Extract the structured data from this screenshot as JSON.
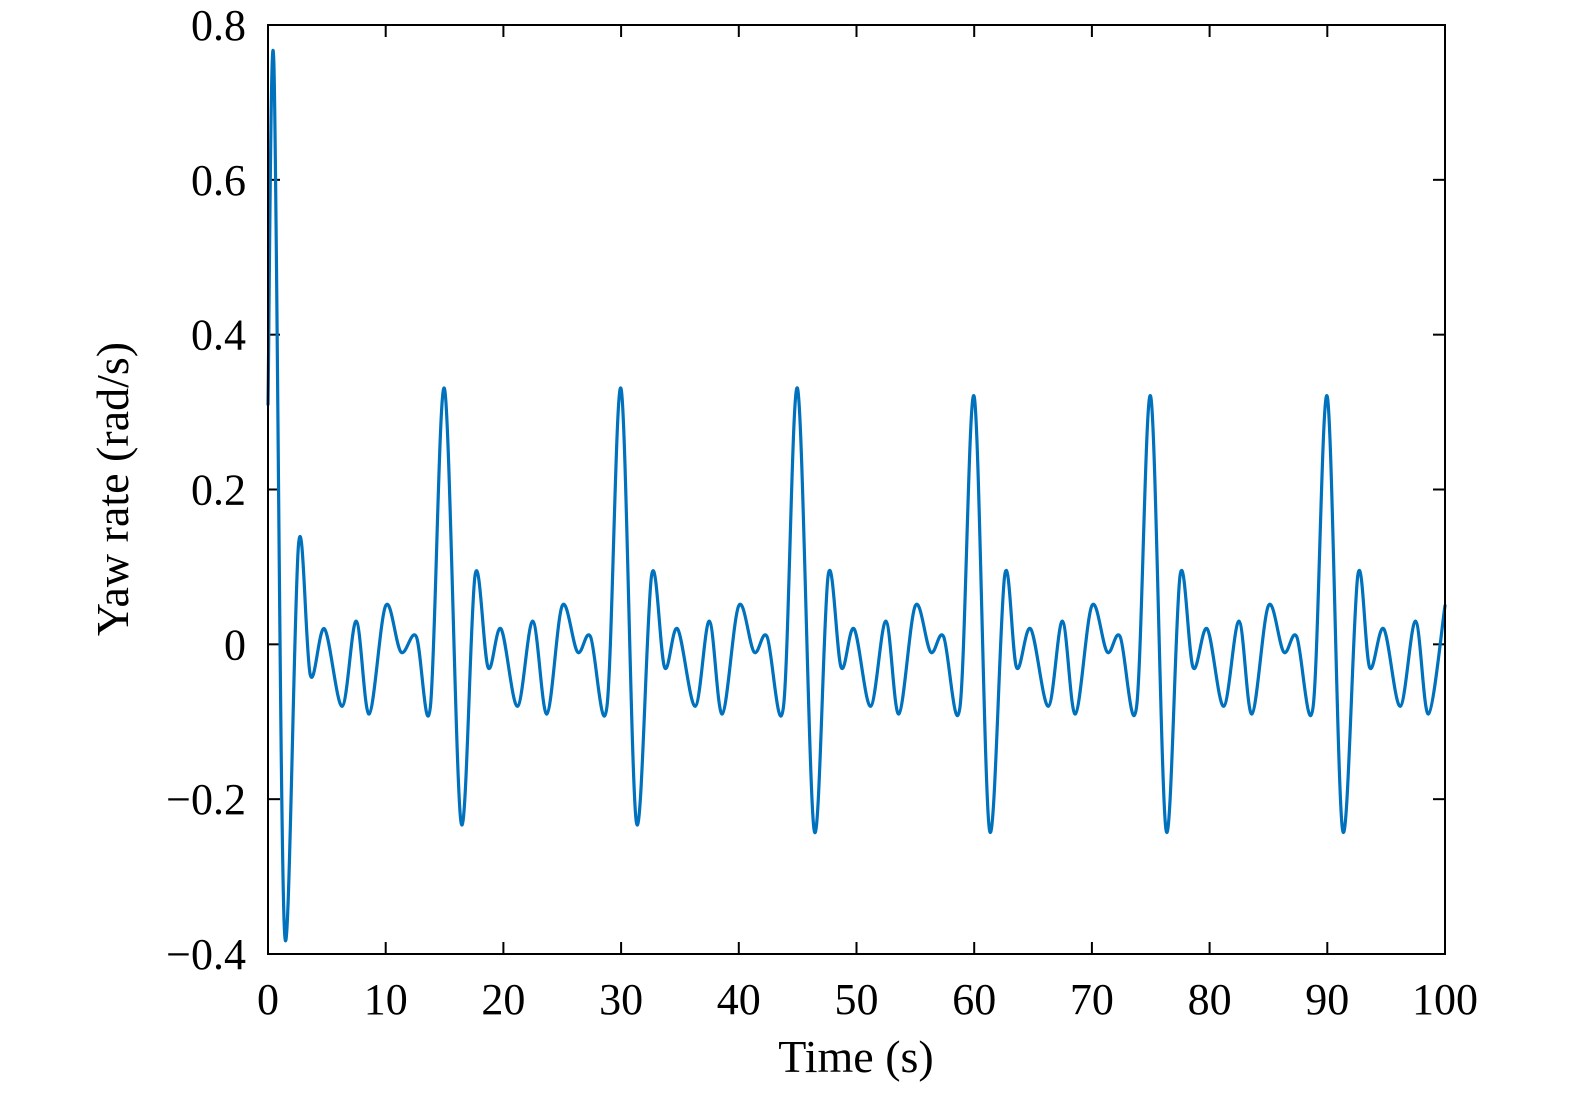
{
  "chart_data": {
    "type": "line",
    "title": "",
    "xlabel": "Time (s)",
    "ylabel": "Yaw rate (rad/s)",
    "xlim": [
      0,
      100
    ],
    "ylim": [
      -0.4,
      0.8
    ],
    "xticks": [
      0,
      10,
      20,
      30,
      40,
      50,
      60,
      70,
      80,
      90,
      100
    ],
    "xtick_labels": [
      "0",
      "10",
      "20",
      "30",
      "40",
      "50",
      "60",
      "70",
      "80",
      "90",
      "100"
    ],
    "yticks": [
      -0.4,
      -0.2,
      0,
      0.2,
      0.4,
      0.6,
      0.8
    ],
    "ytick_labels": [
      "−0.4",
      "−0.2",
      "0",
      "0.2",
      "0.4",
      "0.6",
      "0.8"
    ],
    "grid": false,
    "box": true,
    "line_color": "#0072BD",
    "series": [
      {
        "x": [
          0,
          0.5,
          1.4,
          2.6,
          3.6,
          4.8,
          6.3,
          7.5,
          8.6,
          10,
          11.3,
          12.6,
          13.8,
          15,
          16.4,
          17.6,
          18.7,
          19.8,
          21.2,
          22.5,
          23.7,
          25,
          26.3,
          27.4,
          28.8,
          30,
          31.3,
          32.6,
          33.7,
          34.8,
          36.3,
          37.5,
          38.6,
          40,
          41.3,
          42.4,
          43.8,
          45,
          46.4,
          47.6,
          48.7,
          49.8,
          51.2,
          52.5,
          53.6,
          55,
          56.3,
          57.4,
          58.8,
          60,
          61.3,
          62.6,
          63.6,
          64.8,
          66.3,
          67.5,
          68.6,
          70,
          71.3,
          72.4,
          73.8,
          75,
          76.3,
          77.5,
          78.6,
          79.8,
          81.2,
          82.5,
          83.6,
          85,
          86.3,
          87.4,
          88.8,
          90,
          91.3,
          92.6,
          93.6,
          94.8,
          96.2,
          97.5,
          98.6,
          100
        ],
        "y": [
          0.31,
          0.75,
          -0.37,
          0.13,
          -0.04,
          0.02,
          -0.08,
          0.03,
          -0.09,
          0.05,
          -0.01,
          0.01,
          -0.08,
          0.33,
          -0.23,
          0.09,
          -0.03,
          0.02,
          -0.08,
          0.03,
          -0.09,
          0.05,
          -0.01,
          0.01,
          -0.08,
          0.33,
          -0.23,
          0.09,
          -0.03,
          0.02,
          -0.08,
          0.03,
          -0.09,
          0.05,
          -0.01,
          0.01,
          -0.08,
          0.33,
          -0.24,
          0.09,
          -0.03,
          0.02,
          -0.08,
          0.03,
          -0.09,
          0.05,
          -0.01,
          0.01,
          -0.08,
          0.32,
          -0.24,
          0.09,
          -0.03,
          0.02,
          -0.08,
          0.03,
          -0.09,
          0.05,
          -0.01,
          0.01,
          -0.08,
          0.32,
          -0.24,
          0.09,
          -0.03,
          0.02,
          -0.08,
          0.03,
          -0.09,
          0.05,
          -0.01,
          0.01,
          -0.08,
          0.32,
          -0.24,
          0.09,
          -0.03,
          0.02,
          -0.08,
          0.03,
          -0.09,
          0.05
        ]
      }
    ]
  }
}
